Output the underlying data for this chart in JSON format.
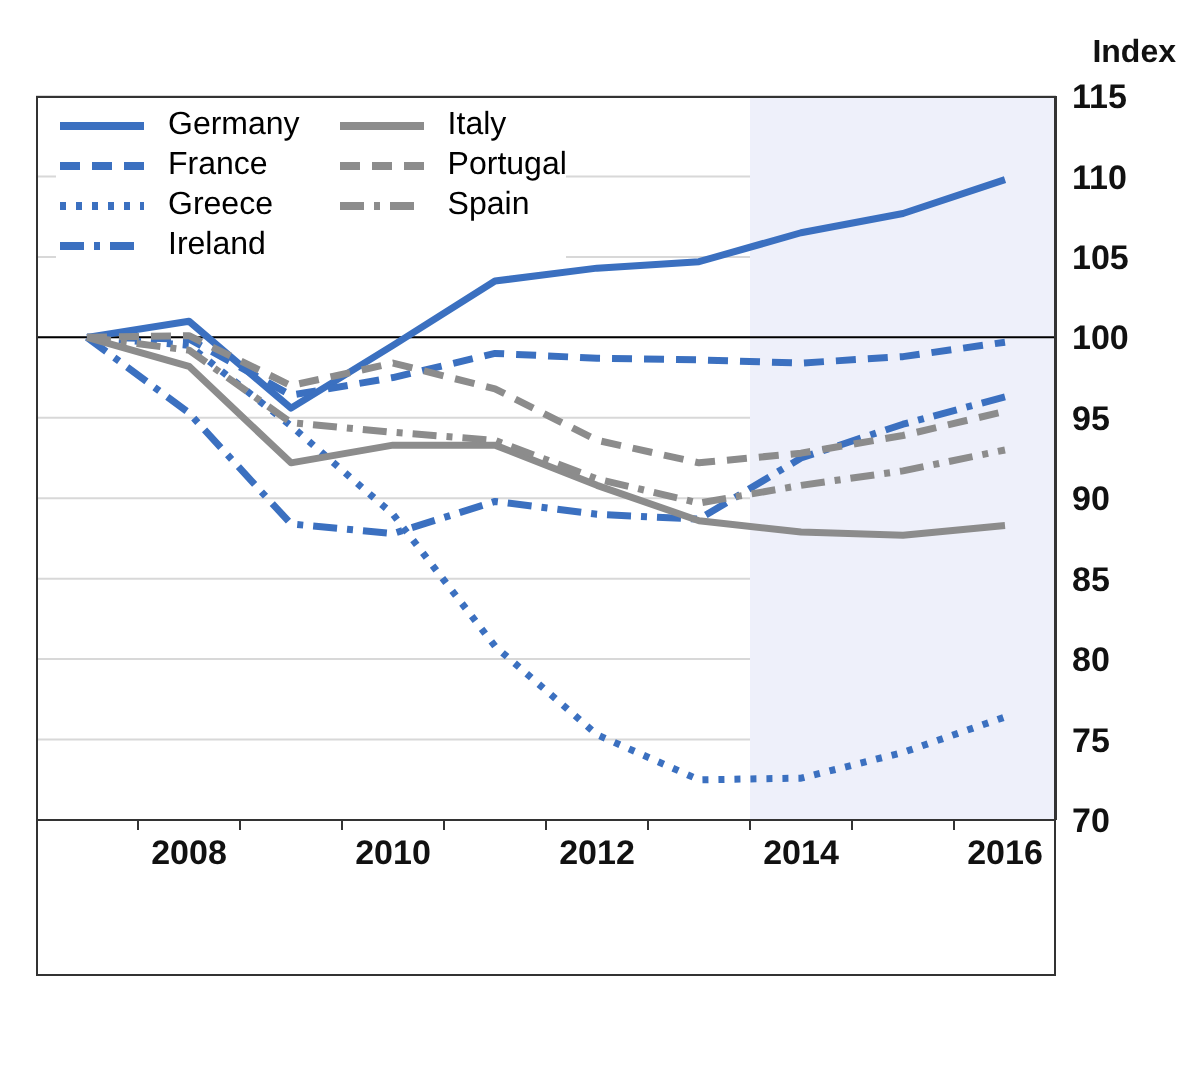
{
  "chart_data": {
    "type": "line",
    "ylabel": "Index",
    "x": [
      2007,
      2008,
      2009,
      2010,
      2011,
      2012,
      2013,
      2014,
      2015,
      2016
    ],
    "xlim": [
      2006.5,
      2016.5
    ],
    "xticks": [
      {
        "value": 2007.5,
        "label": null
      },
      2008,
      {
        "value": 2008.5,
        "label": null
      },
      {
        "value": 2009.5,
        "label": null
      },
      2010,
      {
        "value": 2010.5,
        "label": null
      },
      {
        "value": 2011.5,
        "label": null
      },
      2012,
      {
        "value": 2012.5,
        "label": null
      },
      {
        "value": 2013.5,
        "label": null
      },
      2014,
      {
        "value": 2014.5,
        "label": null
      },
      {
        "value": 2015.5,
        "label": null
      },
      2016
    ],
    "ylim": [
      70,
      115
    ],
    "yticks": [
      70,
      75,
      80,
      85,
      90,
      95,
      100,
      105,
      110,
      115
    ],
    "grid": "y",
    "legend": "top left",
    "marker": "none",
    "bands": [
      {
        "axis": "x",
        "from": 2013.5,
        "to": 2016.5,
        "color": "#eef0fa"
      }
    ],
    "ref_lines": [
      {
        "axis": "y",
        "value": 100,
        "color": "#000000"
      }
    ],
    "series": [
      {
        "name": "Germany",
        "color": "#3b70c0",
        "line_style": "solid",
        "values": [
          100,
          101,
          95.6,
          99.5,
          103.5,
          104.3,
          104.7,
          106.5,
          107.7,
          109.8
        ]
      },
      {
        "name": "France",
        "color": "#3b70c0",
        "line_style": "dashed",
        "values": [
          100,
          99.9,
          96.4,
          97.5,
          99.0,
          98.7,
          98.6,
          98.4,
          98.8,
          99.7
        ]
      },
      {
        "name": "Greece",
        "color": "#3b70c0",
        "line_style": "dotted",
        "values": [
          100,
          99.5,
          94.5,
          89.0,
          80.8,
          75.3,
          72.5,
          72.6,
          74.2,
          76.4
        ]
      },
      {
        "name": "Ireland",
        "color": "#3b70c0",
        "line_style": "dashdot",
        "values": [
          100,
          95.3,
          88.4,
          87.8,
          89.8,
          89.0,
          88.7,
          92.5,
          94.6,
          96.3
        ]
      },
      {
        "name": "Italy",
        "color": "#8c8c8c",
        "line_style": "solid",
        "values": [
          100,
          98.2,
          92.2,
          93.3,
          93.3,
          90.8,
          88.6,
          87.9,
          87.7,
          88.3
        ]
      },
      {
        "name": "Portugal",
        "color": "#8c8c8c",
        "line_style": "dashed",
        "values": [
          100,
          100.1,
          97.0,
          98.4,
          96.8,
          93.6,
          92.2,
          92.8,
          93.9,
          95.4
        ]
      },
      {
        "name": "Spain",
        "color": "#8c8c8c",
        "line_style": "dashdot",
        "values": [
          100,
          99.2,
          94.7,
          94.1,
          93.6,
          91.2,
          89.7,
          90.8,
          91.7,
          93.0
        ]
      }
    ]
  }
}
